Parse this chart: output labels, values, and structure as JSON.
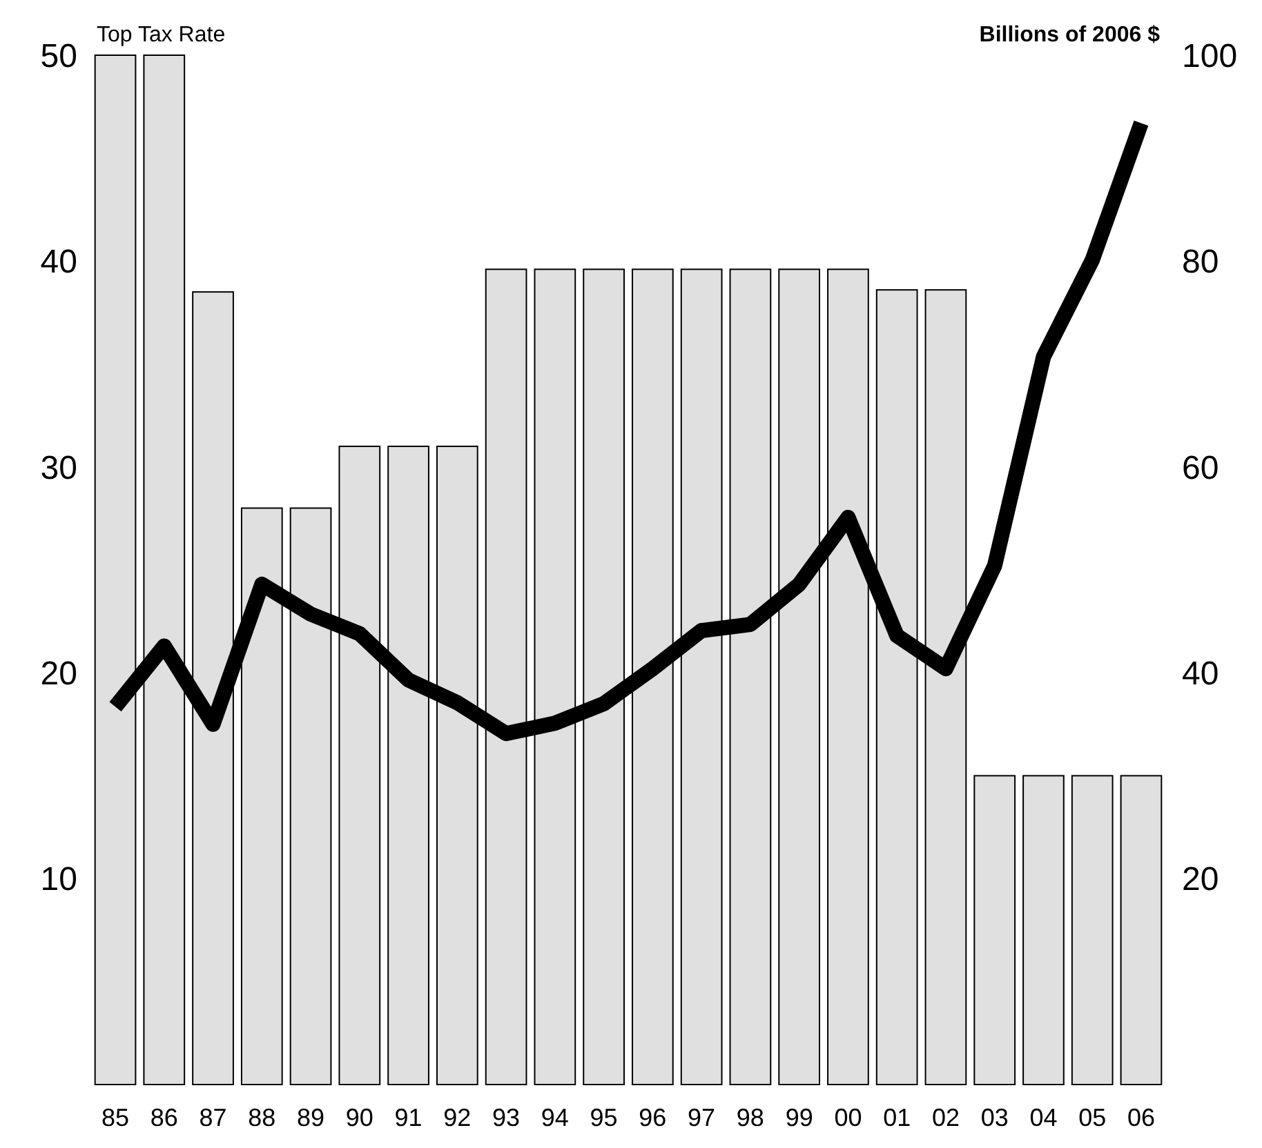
{
  "chart_data": {
    "type": "bar",
    "ylabel": "Top Tax Rate",
    "y2label": "Billions of 2006 $",
    "categories": [
      "85",
      "86",
      "87",
      "88",
      "89",
      "90",
      "91",
      "92",
      "93",
      "94",
      "95",
      "96",
      "97",
      "98",
      "99",
      "00",
      "01",
      "02",
      "03",
      "04",
      "05",
      "06"
    ],
    "series": [
      {
        "color": "#e0e0e0",
        "values": [
          50,
          50,
          38.5,
          28,
          28,
          31,
          31,
          31,
          39.6,
          39.6,
          39.6,
          39.6,
          39.6,
          39.6,
          39.6,
          39.6,
          38.6,
          38.6,
          15,
          15,
          15,
          15
        ]
      },
      {
        "type": "line",
        "axis": "y2",
        "color": "#000000",
        "values": [
          36.7,
          42.6,
          35,
          48.6,
          45.7,
          43.8,
          39.3,
          37.1,
          34.1,
          35.1,
          37,
          40.4,
          44.1,
          44.7,
          48.6,
          55.1,
          43.6,
          40.4,
          50.4,
          70.7,
          80.1,
          93.4
        ]
      }
    ],
    "ylim": [
      0,
      50
    ],
    "yticks": [
      10,
      20,
      30,
      40,
      50
    ],
    "y2lim": [
      0,
      100
    ],
    "y2ticks": [
      20,
      40,
      60,
      80,
      100
    ],
    "grid": false,
    "marker": "none",
    "line_style": "solid"
  }
}
